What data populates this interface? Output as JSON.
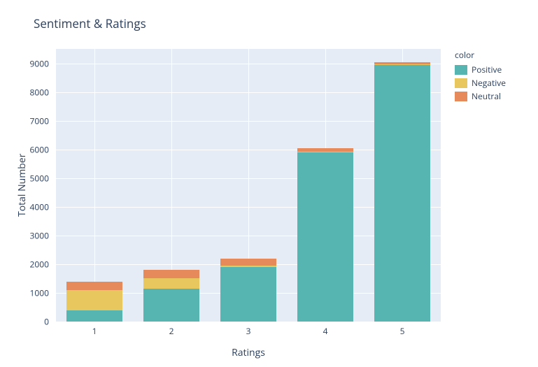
{
  "chart": {
    "type": "stacked-bar",
    "title": "Sentiment & Ratings",
    "title_fontsize": 17,
    "title_color": "#2a3f5f",
    "background_color": "#ffffff",
    "plot_bg_color": "#e5ecf6",
    "grid_color": "#ffffff",
    "font_color": "#2a3f5f",
    "label_fontsize": 14,
    "tick_fontsize": 12,
    "xlabel": "Ratings",
    "ylabel": "Total Number",
    "categories": [
      "1",
      "2",
      "3",
      "4",
      "5"
    ],
    "ylim": [
      0,
      9500
    ],
    "ytick_step": 1000,
    "yticks": [
      0,
      1000,
      2000,
      3000,
      4000,
      5000,
      6000,
      7000,
      8000,
      9000
    ],
    "bar_width": 0.72,
    "legend_title": "color",
    "series": [
      {
        "name": "Positive",
        "color": "#56b4b1",
        "values": [
          400,
          1150,
          1900,
          5900,
          8950
        ]
      },
      {
        "name": "Negative",
        "color": "#e8c75f",
        "values": [
          700,
          350,
          50,
          20,
          10
        ]
      },
      {
        "name": "Neutral",
        "color": "#e68a5c",
        "values": [
          300,
          300,
          250,
          120,
          80
        ]
      }
    ]
  }
}
